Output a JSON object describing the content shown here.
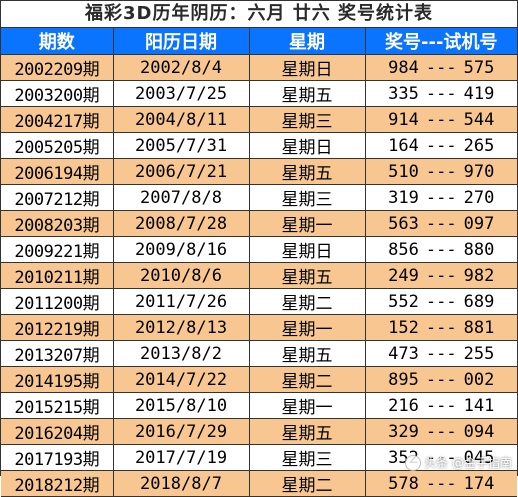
{
  "title": "福彩3D历年阴历：六月  廿六  奖号统计表",
  "headers": {
    "period": "期数",
    "date": "阳历日期",
    "weekday": "星期",
    "numbers": "奖号---试机号"
  },
  "separator": "---",
  "rows": [
    {
      "period": "2002209期",
      "date": "2002/8/4",
      "weekday": "星期日",
      "draw": "984",
      "test": "575"
    },
    {
      "period": "2003200期",
      "date": "2003/7/25",
      "weekday": "星期五",
      "draw": "335",
      "test": "419"
    },
    {
      "period": "2004217期",
      "date": "2004/8/11",
      "weekday": "星期三",
      "draw": "914",
      "test": "544"
    },
    {
      "period": "2005205期",
      "date": "2005/7/31",
      "weekday": "星期日",
      "draw": "164",
      "test": "265"
    },
    {
      "period": "2006194期",
      "date": "2006/7/21",
      "weekday": "星期五",
      "draw": "510",
      "test": "970"
    },
    {
      "period": "2007212期",
      "date": "2007/8/8",
      "weekday": "星期三",
      "draw": "319",
      "test": "270"
    },
    {
      "period": "2008203期",
      "date": "2008/7/28",
      "weekday": "星期一",
      "draw": "563",
      "test": "097"
    },
    {
      "period": "2009221期",
      "date": "2009/8/16",
      "weekday": "星期日",
      "draw": "856",
      "test": "880"
    },
    {
      "period": "2010211期",
      "date": "2010/8/6",
      "weekday": "星期五",
      "draw": "249",
      "test": "982"
    },
    {
      "period": "2011200期",
      "date": "2011/7/26",
      "weekday": "星期二",
      "draw": "552",
      "test": "689"
    },
    {
      "period": "2012219期",
      "date": "2012/8/13",
      "weekday": "星期一",
      "draw": "152",
      "test": "881"
    },
    {
      "period": "2013207期",
      "date": "2013/8/2",
      "weekday": "星期五",
      "draw": "473",
      "test": "255"
    },
    {
      "period": "2014195期",
      "date": "2014/7/22",
      "weekday": "星期二",
      "draw": "895",
      "test": "002"
    },
    {
      "period": "2015215期",
      "date": "2015/8/10",
      "weekday": "星期一",
      "draw": "216",
      "test": "141"
    },
    {
      "period": "2016204期",
      "date": "2016/7/29",
      "weekday": "星期五",
      "draw": "329",
      "test": "094"
    },
    {
      "period": "2017193期",
      "date": "2017/7/19",
      "weekday": "星期三",
      "draw": "352",
      "test": "045"
    },
    {
      "period": "2018212期",
      "date": "2018/8/7",
      "weekday": "星期二",
      "draw": "578",
      "test": "174"
    }
  ],
  "watermark": "头条 @金手指南",
  "colors": {
    "header_bg": "#0b74ff",
    "row_orange": "#f8c791",
    "row_white": "#ffffff",
    "border": "#333333"
  }
}
